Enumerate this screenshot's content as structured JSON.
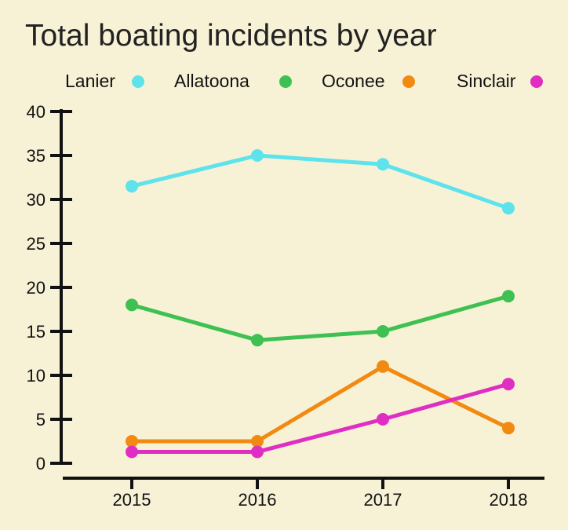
{
  "chart_data": {
    "type": "line",
    "title": "Total boating incidents by year",
    "xlabel": "",
    "ylabel": "",
    "categories": [
      "2015",
      "2016",
      "2017",
      "2018"
    ],
    "ylim": [
      0,
      40
    ],
    "yticks": [
      0,
      5,
      10,
      15,
      20,
      25,
      30,
      35,
      40
    ],
    "grid": false,
    "legend_position": "top",
    "series": [
      {
        "name": "Lanier",
        "color": "#5ee3ec",
        "values": [
          31.5,
          35,
          34,
          29
        ]
      },
      {
        "name": "Allatoona",
        "color": "#3ec152",
        "values": [
          18,
          14,
          15,
          19
        ]
      },
      {
        "name": "Oconee",
        "color": "#f28a12",
        "values": [
          2.5,
          2.5,
          11,
          4
        ]
      },
      {
        "name": "Sinclair",
        "color": "#e02ec2",
        "values": [
          1.3,
          1.3,
          5,
          9
        ]
      }
    ]
  }
}
